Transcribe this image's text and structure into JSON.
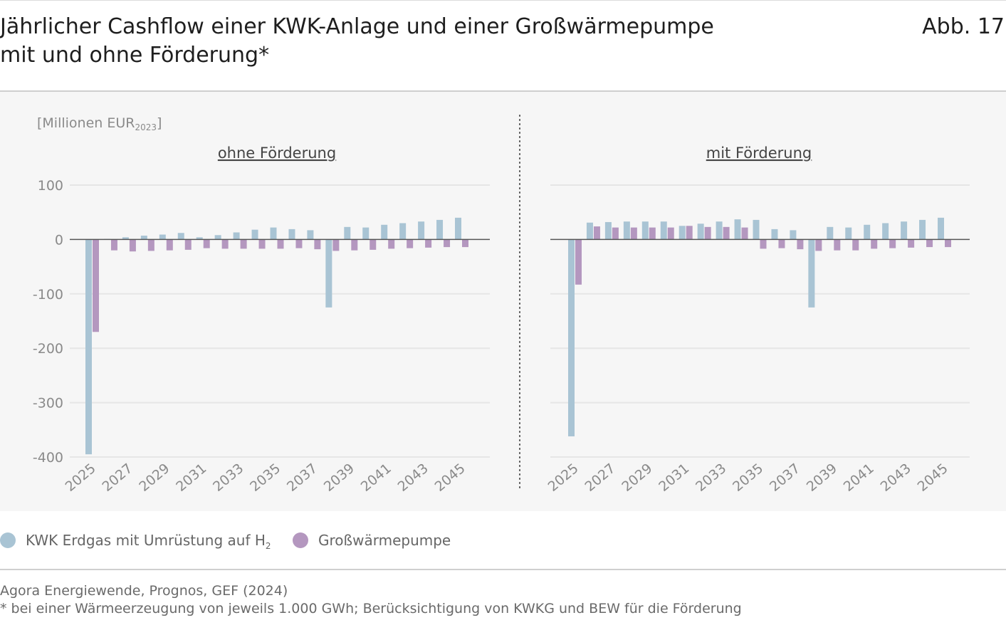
{
  "header": {
    "title_line1": "Jährlicher Cashflow einer KWK-Anlage und einer Großwärmepumpe",
    "title_line2": "mit und ohne Förderung*",
    "figure_label": "Abb. 17"
  },
  "colors": {
    "kwk": "#a9c4d4",
    "wp": "#b497bf",
    "grid": "#e6e6e6",
    "zero": "#555555",
    "text": "#8a8a8a"
  },
  "chart_data": [
    {
      "type": "bar",
      "title": "ohne Förderung",
      "ylabel_main": "[Millionen EUR",
      "ylabel_sub": "2023",
      "ylabel_end": "]",
      "ylim": [
        -400,
        100
      ],
      "yticks": [
        100,
        0,
        -100,
        -200,
        -300,
        -400
      ],
      "ytick_labels": [
        "100",
        "0",
        "-100",
        "-200",
        "-300",
        "-400"
      ],
      "categories": [
        "2025",
        "2026",
        "2027",
        "2028",
        "2029",
        "2030",
        "2031",
        "2032",
        "2033",
        "2034",
        "2035",
        "2036",
        "2037",
        "2038",
        "2039",
        "2040",
        "2041",
        "2042",
        "2043",
        "2044",
        "2045"
      ],
      "xtick_labels": [
        "2025",
        "2027",
        "2029",
        "2031",
        "2033",
        "2035",
        "2037",
        "2039",
        "2041",
        "2043",
        "2045"
      ],
      "series": [
        {
          "name": "KWK Erdgas mit Umrüstung auf H2",
          "color_key": "kwk",
          "values": [
            -395,
            1,
            4,
            7,
            9,
            12,
            4,
            8,
            13,
            18,
            22,
            19,
            17,
            -125,
            23,
            22,
            27,
            30,
            33,
            36,
            40
          ]
        },
        {
          "name": "Großwärmepumpe",
          "color_key": "wp",
          "values": [
            -170,
            -20,
            -22,
            -21,
            -20,
            -19,
            -16,
            -17,
            -17,
            -17,
            -17,
            -16,
            -18,
            -21,
            -20,
            -19,
            -17,
            -16,
            -15,
            -14,
            -14
          ]
        }
      ]
    },
    {
      "type": "bar",
      "title": "mit Förderung",
      "ylim": [
        -400,
        100
      ],
      "categories": [
        "2025",
        "2026",
        "2027",
        "2028",
        "2029",
        "2030",
        "2031",
        "2032",
        "2033",
        "2034",
        "2035",
        "2036",
        "2037",
        "2038",
        "2039",
        "2040",
        "2041",
        "2042",
        "2043",
        "2044",
        "2045"
      ],
      "xtick_labels": [
        "2025",
        "2027",
        "2029",
        "2031",
        "2033",
        "2035",
        "2037",
        "2039",
        "2041",
        "2043",
        "2045"
      ],
      "series": [
        {
          "name": "KWK Erdgas mit Umrüstung auf H2",
          "color_key": "kwk",
          "values": [
            -362,
            31,
            32,
            33,
            33,
            33,
            25,
            29,
            33,
            37,
            36,
            19,
            17,
            -125,
            23,
            22,
            27,
            30,
            33,
            36,
            40
          ]
        },
        {
          "name": "Großwärmepumpe",
          "color_key": "wp",
          "values": [
            -83,
            24,
            22,
            22,
            22,
            22,
            25,
            23,
            23,
            22,
            -17,
            -16,
            -18,
            -21,
            -20,
            -20,
            -17,
            -16,
            -15,
            -14,
            -14
          ]
        }
      ]
    }
  ],
  "legend": {
    "kwk_label_main": "KWK Erdgas mit Umrüstung auf H",
    "kwk_label_sub": "2",
    "wp_label": "Großwärmepumpe"
  },
  "footer": {
    "source": "Agora Energiewende, Prognos, GEF (2024)",
    "note": "* bei einer Wärmeerzeugung von jeweils 1.000 GWh; Berücksichtigung von KWKG und BEW für die Förderung"
  }
}
